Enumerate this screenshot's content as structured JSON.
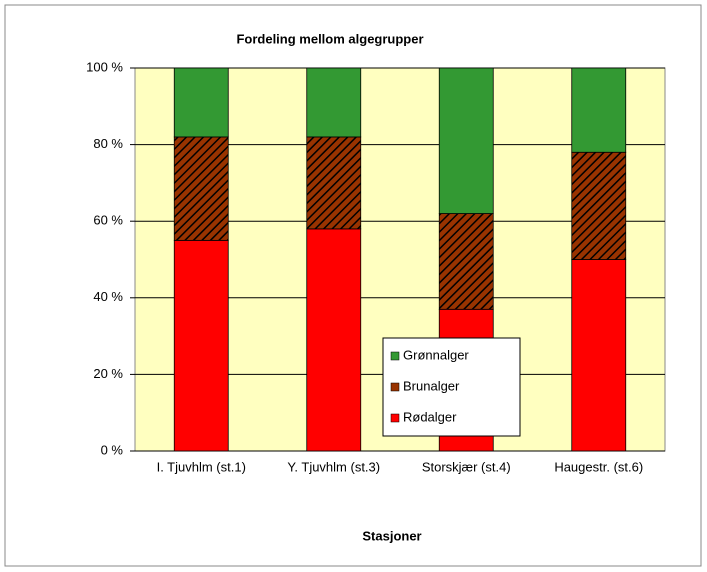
{
  "chart_data": {
    "type": "stacked_bar",
    "title": "Fordeling mellom algegrupper",
    "x_label": "Stasjoner",
    "categories": [
      "I. Tjuvhlm (st.1)",
      "Y. Tjuvhlm (st.3)",
      "Storskjær (st.4)",
      "Haugestr. (st.6)"
    ],
    "series": [
      {
        "name": "Rødalger",
        "color": "#ff0000",
        "values": [
          55,
          58,
          37,
          50
        ]
      },
      {
        "name": "Brunalger",
        "color": "#993300",
        "hatch": true,
        "values": [
          27,
          24,
          25,
          28
        ]
      },
      {
        "name": "Grønnalger",
        "color": "#339933",
        "values": [
          18,
          18,
          38,
          22
        ]
      }
    ],
    "ylim": [
      0,
      100
    ],
    "yticks": [
      {
        "value": 0,
        "label": "0 %"
      },
      {
        "value": 20,
        "label": "20 %"
      },
      {
        "value": 40,
        "label": "40 %"
      },
      {
        "value": 60,
        "label": "60 %"
      },
      {
        "value": 80,
        "label": "80 %"
      },
      {
        "value": 100,
        "label": "100 %"
      }
    ],
    "grid": true,
    "plot_background": "#ffffc0"
  }
}
